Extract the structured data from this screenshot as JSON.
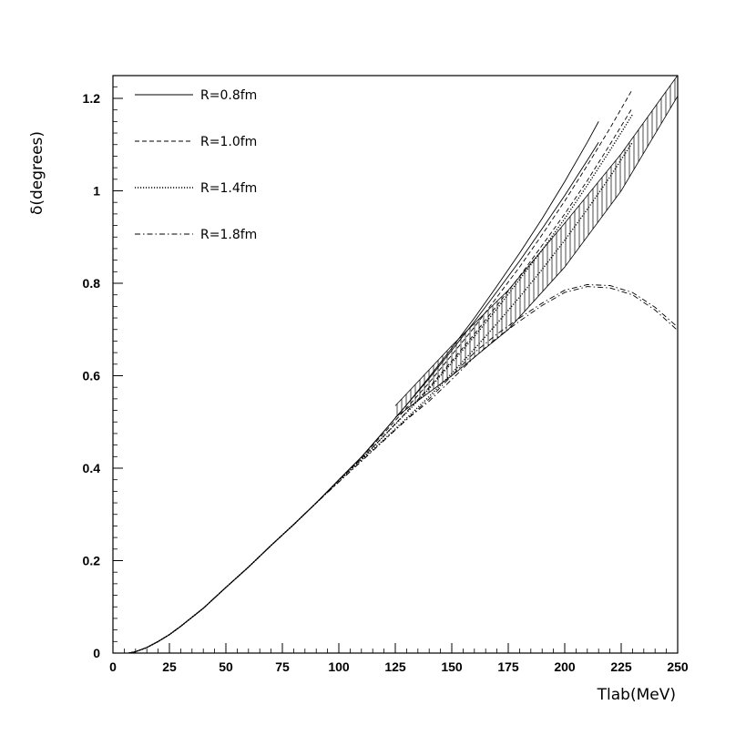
{
  "chart_data": {
    "type": "line",
    "xlabel": "Tlab(MeV)",
    "ylabel": "δ(degrees)",
    "xlim": [
      0,
      250
    ],
    "ylim": [
      0,
      1.25
    ],
    "x_ticks": [
      0,
      25,
      50,
      75,
      100,
      125,
      150,
      175,
      200,
      225,
      250
    ],
    "x_tick_labels": [
      "0",
      "25",
      "50",
      "75",
      "100",
      "125",
      "150",
      "175",
      "200",
      "225",
      "250"
    ],
    "y_ticks": [
      0,
      0.2,
      0.4,
      0.6,
      0.8,
      1.0,
      1.2
    ],
    "y_tick_labels": [
      "0",
      "0.2",
      "0.4",
      "0.6",
      "0.8",
      "1",
      "1.2"
    ],
    "grid": false,
    "legend_position": "top-left",
    "series": [
      {
        "name": "R=0.8fm",
        "style": "solid",
        "x": [
          7,
          10,
          15,
          20,
          25,
          30,
          40,
          50,
          60,
          70,
          80,
          90,
          100,
          110,
          120,
          130,
          140,
          150,
          160,
          170,
          180,
          190,
          200,
          210,
          215
        ],
        "y_bands": [
          [
            0.0,
            0.003,
            0.012,
            0.025,
            0.04,
            0.058,
            0.097,
            0.142,
            0.186,
            0.233,
            0.278,
            0.325,
            0.375,
            0.424,
            0.48,
            0.537,
            0.597,
            0.66,
            0.725,
            0.794,
            0.865,
            0.94,
            1.02,
            1.105,
            1.15
          ],
          [
            0.0,
            0.003,
            0.012,
            0.025,
            0.04,
            0.058,
            0.097,
            0.142,
            0.186,
            0.233,
            0.278,
            0.325,
            0.375,
            0.424,
            0.48,
            0.537,
            0.594,
            0.655,
            0.717,
            0.782,
            0.848,
            0.918,
            0.99,
            1.066,
            1.105
          ]
        ]
      },
      {
        "name": "R=1.0fm",
        "style": "dashed",
        "x": [
          7,
          10,
          15,
          20,
          25,
          30,
          40,
          50,
          60,
          70,
          80,
          90,
          100,
          110,
          120,
          130,
          140,
          150,
          160,
          170,
          180,
          190,
          200,
          210,
          220,
          230
        ],
        "y_bands": [
          [
            0.0,
            0.003,
            0.012,
            0.025,
            0.04,
            0.058,
            0.097,
            0.142,
            0.186,
            0.233,
            0.278,
            0.325,
            0.374,
            0.423,
            0.476,
            0.53,
            0.585,
            0.645,
            0.705,
            0.77,
            0.835,
            0.905,
            0.978,
            1.055,
            1.135,
            1.22
          ],
          [
            0.0,
            0.003,
            0.012,
            0.025,
            0.04,
            0.058,
            0.097,
            0.142,
            0.186,
            0.233,
            0.278,
            0.325,
            0.374,
            0.42,
            0.47,
            0.522,
            0.575,
            0.632,
            0.69,
            0.752,
            0.815,
            0.882,
            0.95,
            1.022,
            1.1,
            1.18
          ]
        ]
      },
      {
        "name": "R=1.4fm",
        "style": "dotted",
        "x": [
          7,
          10,
          15,
          20,
          25,
          30,
          40,
          50,
          60,
          70,
          80,
          90,
          100,
          110,
          120,
          130,
          140,
          150,
          160,
          170,
          180,
          190,
          200,
          210,
          220,
          230
        ],
        "y_bands": [
          [
            0.0,
            0.003,
            0.012,
            0.025,
            0.04,
            0.058,
            0.097,
            0.142,
            0.186,
            0.233,
            0.278,
            0.325,
            0.372,
            0.42,
            0.47,
            0.52,
            0.572,
            0.628,
            0.685,
            0.745,
            0.808,
            0.872,
            0.94,
            1.012,
            1.087,
            1.165
          ],
          [
            0.0,
            0.003,
            0.012,
            0.025,
            0.04,
            0.058,
            0.097,
            0.142,
            0.186,
            0.233,
            0.278,
            0.325,
            0.372,
            0.418,
            0.462,
            0.508,
            0.555,
            0.605,
            0.658,
            0.713,
            0.77,
            0.83,
            0.893,
            0.96,
            1.03,
            1.105
          ]
        ]
      },
      {
        "name": "R=1.8fm",
        "style": "dashdot",
        "x": [
          7,
          10,
          15,
          20,
          25,
          30,
          40,
          50,
          60,
          70,
          80,
          90,
          100,
          110,
          120,
          130,
          140,
          150,
          160,
          170,
          180,
          190,
          200,
          210,
          220,
          230,
          240,
          250
        ],
        "y_bands": [
          [
            0.0,
            0.003,
            0.012,
            0.025,
            0.04,
            0.058,
            0.097,
            0.142,
            0.186,
            0.233,
            0.278,
            0.325,
            0.37,
            0.415,
            0.46,
            0.505,
            0.55,
            0.6,
            0.65,
            0.69,
            0.725,
            0.757,
            0.785,
            0.797,
            0.795,
            0.78,
            0.748,
            0.705
          ],
          [
            0.0,
            0.003,
            0.012,
            0.025,
            0.04,
            0.058,
            0.097,
            0.142,
            0.186,
            0.233,
            0.278,
            0.325,
            0.37,
            0.415,
            0.46,
            0.505,
            0.545,
            0.592,
            0.64,
            0.682,
            0.718,
            0.752,
            0.78,
            0.793,
            0.79,
            0.775,
            0.742,
            0.698
          ]
        ]
      }
    ],
    "hatched_band": {
      "x": [
        125,
        150,
        175,
        200,
        225,
        250
      ],
      "upper": [
        0.535,
        0.665,
        0.785,
        0.93,
        1.08,
        1.25
      ],
      "lower": [
        0.51,
        0.6,
        0.7,
        0.835,
        1.0,
        1.205
      ]
    }
  }
}
